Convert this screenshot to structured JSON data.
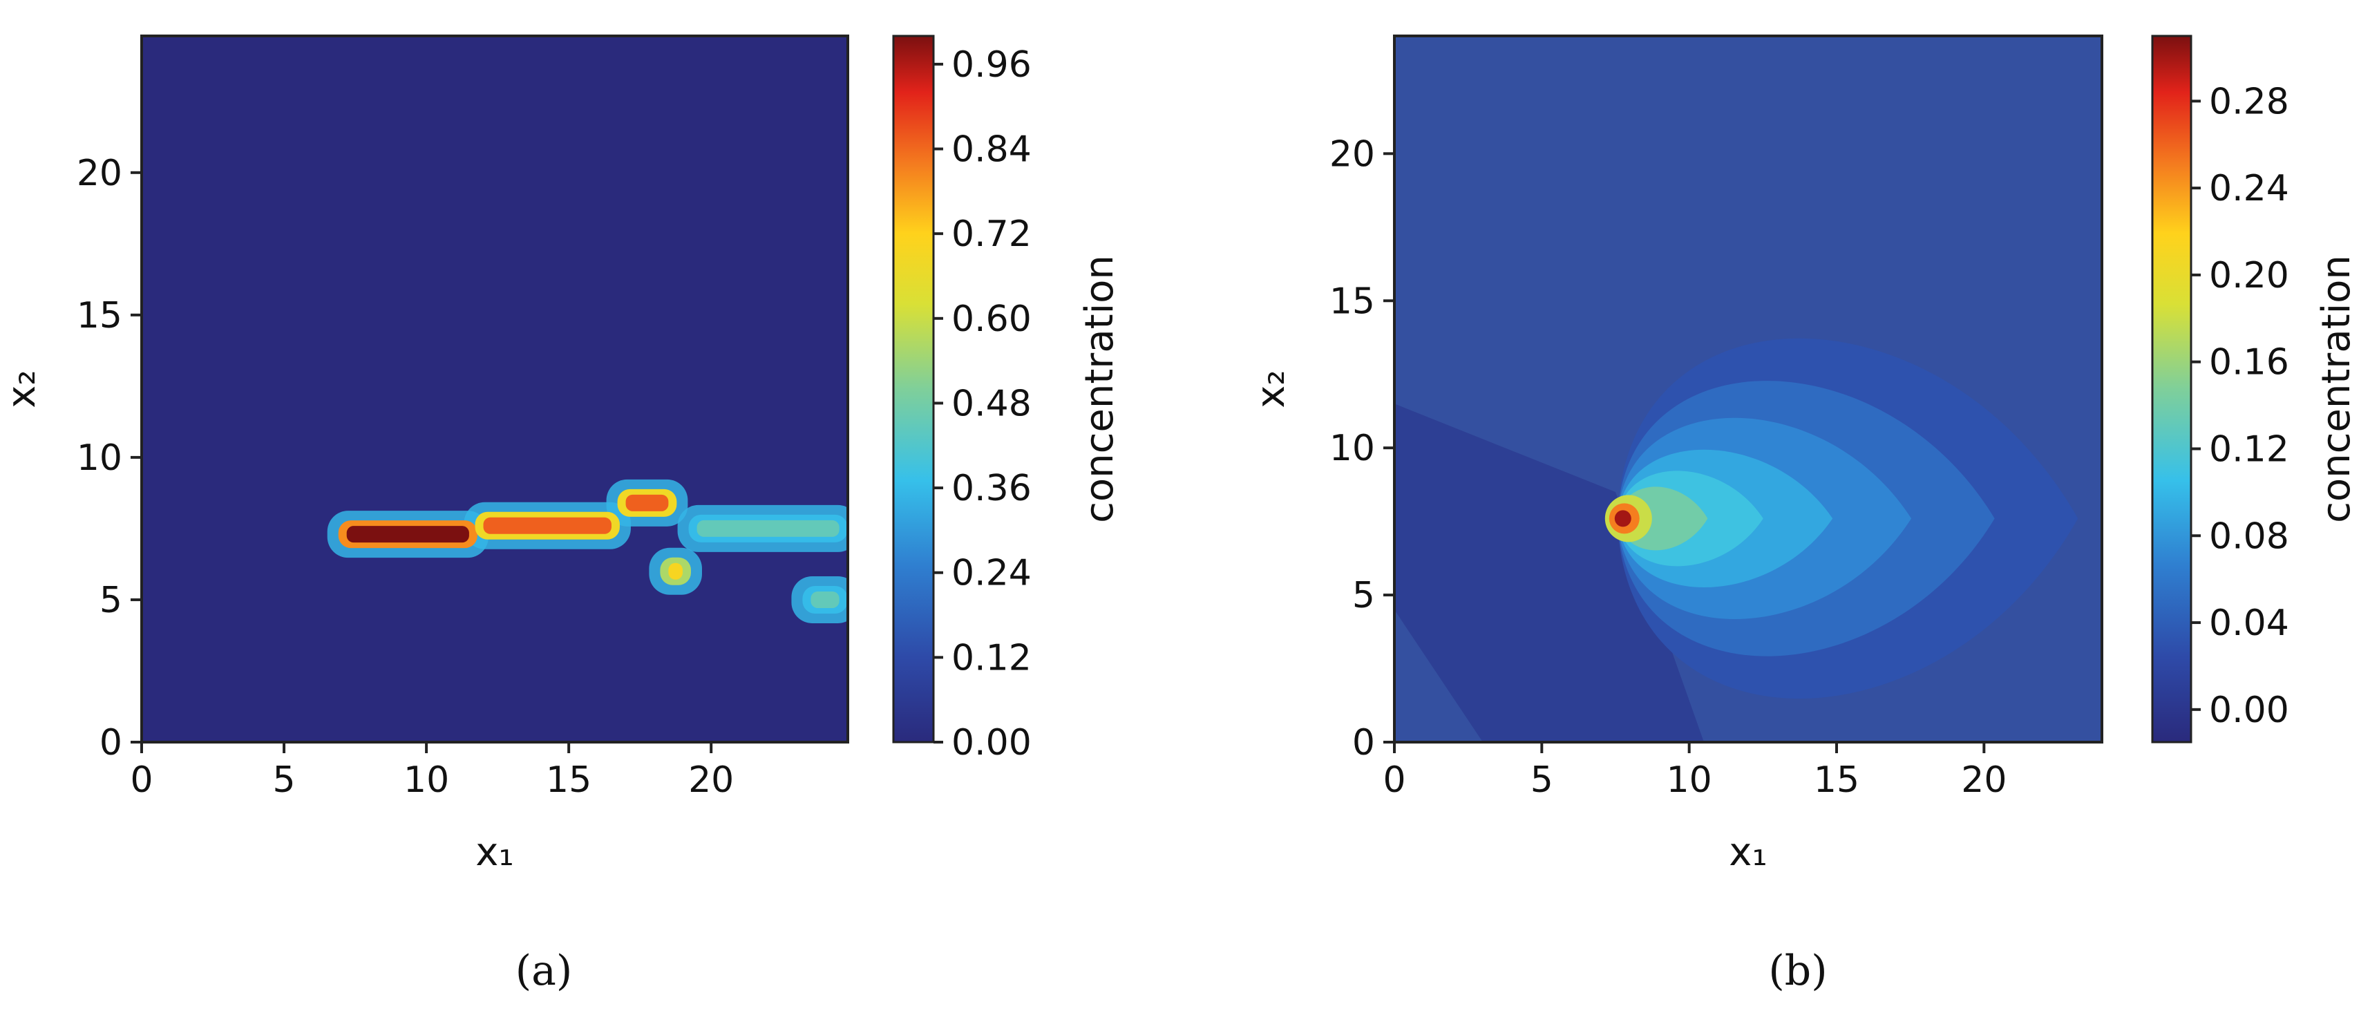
{
  "chart_data": [
    {
      "type": "heatmap",
      "panel_label": "(a)",
      "xlabel": "x₁",
      "ylabel": "x₂",
      "xlim": [
        0,
        24.8
      ],
      "ylim": [
        0,
        24.8
      ],
      "xticks": [
        0,
        5,
        10,
        15,
        20
      ],
      "yticks": [
        0,
        5,
        10,
        15,
        20
      ],
      "colorbar": {
        "label": "concentration",
        "range": [
          0.0,
          1.0
        ],
        "ticks": [
          "0.00",
          "0.12",
          "0.24",
          "0.36",
          "0.48",
          "0.60",
          "0.72",
          "0.84",
          "0.96"
        ],
        "colormap": "jet"
      },
      "background_value": 0.0,
      "features": [
        {
          "x": [
            7.2,
            11.5
          ],
          "y": [
            7.3,
            7.3
          ],
          "value": 1.0
        },
        {
          "x": [
            12.0,
            16.5
          ],
          "y": [
            7.6,
            7.6
          ],
          "value": 0.85
        },
        {
          "x": [
            17.0,
            18.5
          ],
          "y": [
            8.4,
            8.4
          ],
          "value": 0.85
        },
        {
          "x": [
            18.5,
            19.0
          ],
          "y": [
            6.0,
            6.0
          ],
          "value": 0.7
        },
        {
          "x": [
            19.5,
            24.5
          ],
          "y": [
            7.5,
            7.5
          ],
          "value": 0.45
        },
        {
          "x": [
            23.5,
            24.5
          ],
          "y": [
            5.0,
            5.0
          ],
          "value": 0.45
        }
      ]
    },
    {
      "type": "heatmap",
      "panel_label": "(b)",
      "xlabel": "x₁",
      "ylabel": "x₂",
      "xlim": [
        0,
        24
      ],
      "ylim": [
        0,
        24
      ],
      "xticks": [
        0,
        5,
        10,
        15,
        20
      ],
      "yticks": [
        0,
        5,
        10,
        15,
        20
      ],
      "colorbar": {
        "label": "concentration",
        "range": [
          -0.015,
          0.31
        ],
        "ticks": [
          "0.00",
          "0.04",
          "0.08",
          "0.12",
          "0.16",
          "0.20",
          "0.24",
          "0.28"
        ],
        "colormap": "jet"
      },
      "background_value": 0.02,
      "source": {
        "x": 7.8,
        "y": 7.6,
        "peak_value": 0.3
      },
      "plume_extent_x": [
        7.0,
        23.5
      ]
    }
  ]
}
